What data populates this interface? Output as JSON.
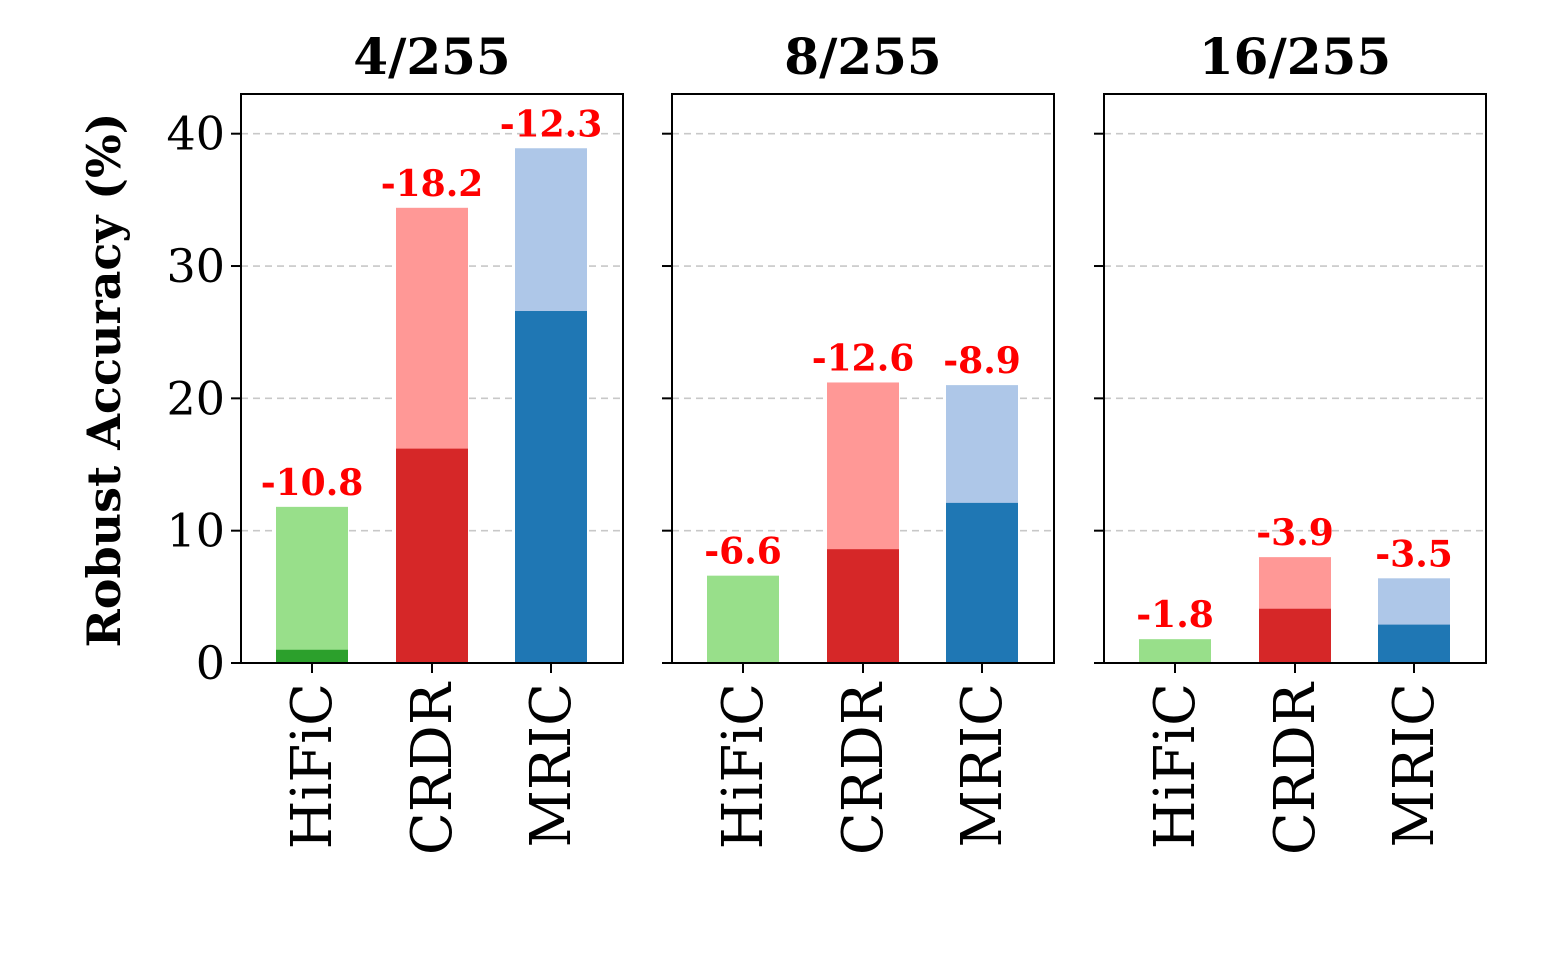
{
  "chart_data": {
    "type": "bar",
    "layout": "stacked-overlay",
    "ylabel": "Robust Accuracy (%)",
    "ylim": [
      0,
      43
    ],
    "yticks": [
      0,
      10,
      20,
      30,
      40
    ],
    "grid": "y-dashed",
    "categories": [
      "HiFiC",
      "CRDR",
      "MRIC"
    ],
    "colors": {
      "HiFiC": {
        "light": "#98df8a",
        "dark": "#2ca02c"
      },
      "CRDR": {
        "light": "#ff9896",
        "dark": "#d62728"
      },
      "MRIC": {
        "light": "#aec7e8",
        "dark": "#1f77b4"
      },
      "drop_label": "#ff0000"
    },
    "panels": [
      {
        "title": "4/255",
        "bars": [
          {
            "category": "HiFiC",
            "total": 11.8,
            "remaining": 1.0,
            "drop_label": "-10.8"
          },
          {
            "category": "CRDR",
            "total": 34.4,
            "remaining": 16.2,
            "drop_label": "-18.2"
          },
          {
            "category": "MRIC",
            "total": 38.9,
            "remaining": 26.6,
            "drop_label": "-12.3"
          }
        ]
      },
      {
        "title": "8/255",
        "bars": [
          {
            "category": "HiFiC",
            "total": 6.6,
            "remaining": 0.0,
            "drop_label": "-6.6"
          },
          {
            "category": "CRDR",
            "total": 21.2,
            "remaining": 8.6,
            "drop_label": "-12.6"
          },
          {
            "category": "MRIC",
            "total": 21.0,
            "remaining": 12.1,
            "drop_label": "-8.9"
          }
        ]
      },
      {
        "title": "16/255",
        "bars": [
          {
            "category": "HiFiC",
            "total": 1.8,
            "remaining": 0.0,
            "drop_label": "-1.8"
          },
          {
            "category": "CRDR",
            "total": 8.0,
            "remaining": 4.1,
            "drop_label": "-3.9"
          },
          {
            "category": "MRIC",
            "total": 6.4,
            "remaining": 2.9,
            "drop_label": "-3.5"
          }
        ]
      }
    ]
  }
}
